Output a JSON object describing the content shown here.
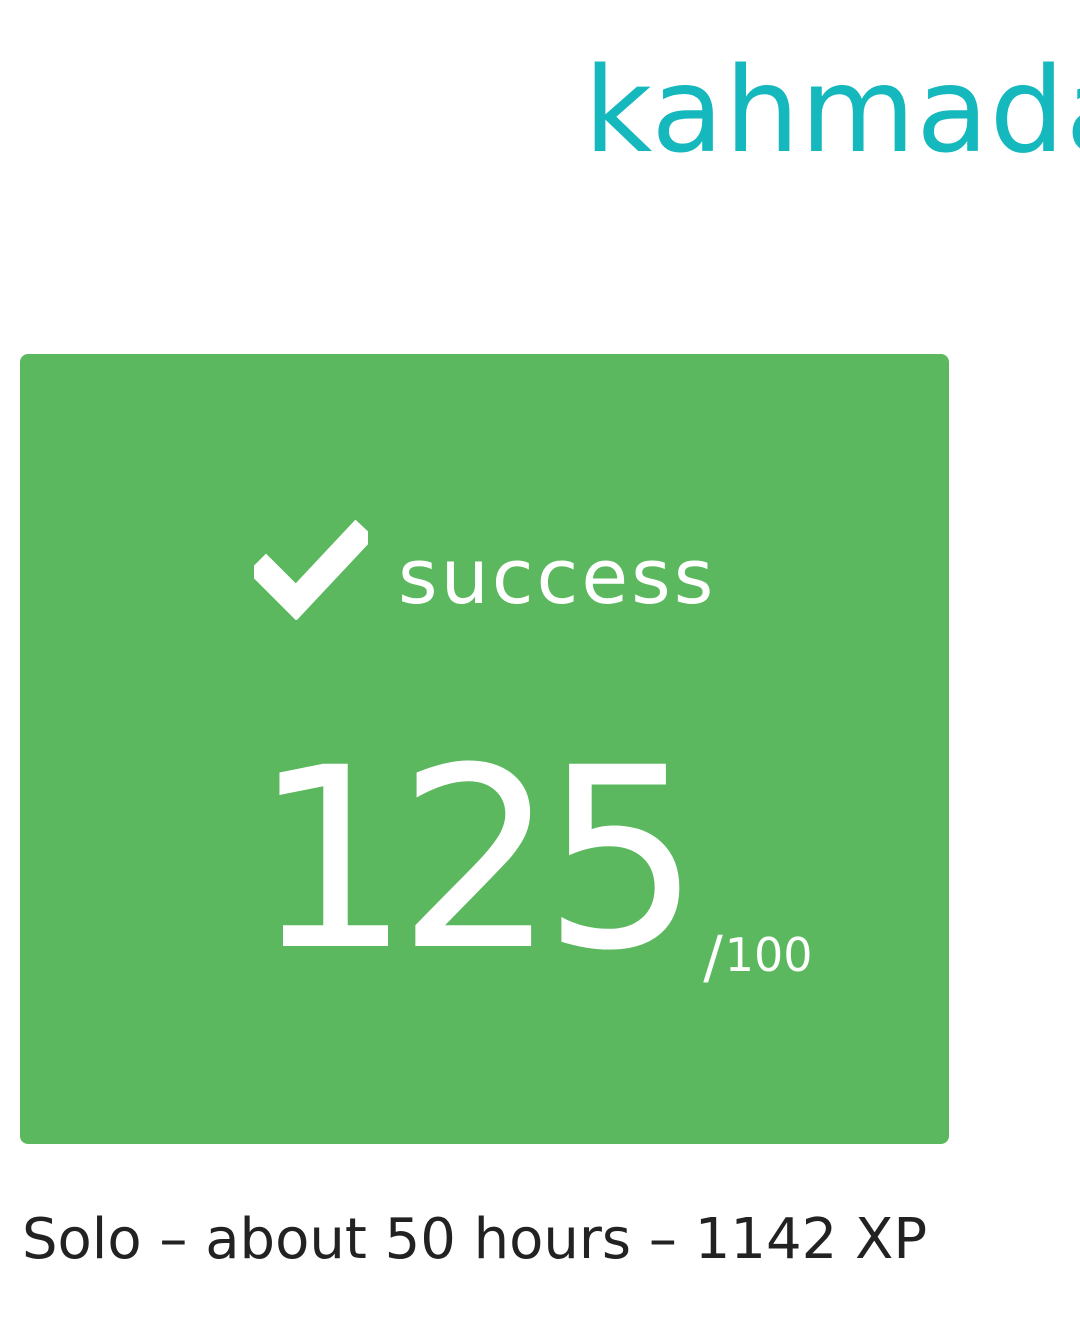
{
  "logo": {
    "text": "kahmada"
  },
  "result": {
    "status_icon": "checkmark-icon",
    "status_label": "success",
    "score": "125",
    "score_separator": "/",
    "score_max": "100",
    "card_color": "#5cb85f"
  },
  "meta": {
    "summary": "Solo – about 50 hours – 1142 XP"
  },
  "colors": {
    "brand": "#14b8bd",
    "text": "#222222"
  }
}
